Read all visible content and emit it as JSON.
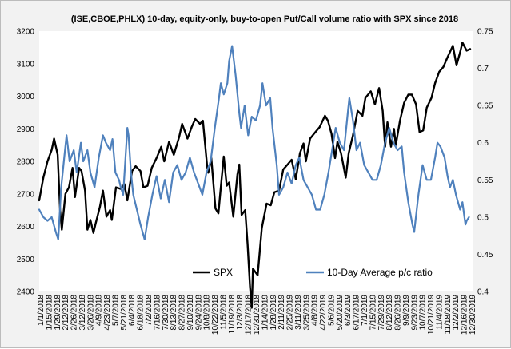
{
  "chart_data": {
    "type": "line",
    "title": "(ISE,CBOE,PHLX) 10-day, equity-only, buy-to-open Put/Call volume ratio with SPX since 2018",
    "xlabel": "",
    "ylabel": "",
    "y2label": "",
    "x_range": [
      "2018-01-01",
      "2019-12-30"
    ],
    "ylim": [
      2400,
      3200
    ],
    "y2lim": [
      0.4,
      0.75
    ],
    "y_ticks": [
      2400,
      2500,
      2600,
      2700,
      2800,
      2900,
      3000,
      3100,
      3200
    ],
    "y2_ticks": [
      "0.4",
      "0.45",
      "0.5",
      "0.55",
      "0.6",
      "0.65",
      "0.7",
      "0.75"
    ],
    "x_tick_labels": [
      "1/1/2018",
      "1/15/2018",
      "1/29/2018",
      "2/12/2018",
      "2/26/2018",
      "3/12/2018",
      "3/26/2018",
      "4/9/2018",
      "4/23/2018",
      "5/7/2018",
      "5/21/2018",
      "6/4/2018",
      "6/18/2018",
      "7/2/2018",
      "7/16/2018",
      "7/30/2018",
      "8/13/2018",
      "8/27/2018",
      "9/10/2018",
      "9/24/2018",
      "10/8/2018",
      "10/22/2018",
      "11/5/2018",
      "11/19/2018",
      "12/3/2018",
      "12/17/2018",
      "12/31/2018",
      "1/14/2019",
      "1/28/2019",
      "2/11/2019",
      "2/25/2019",
      "3/11/2019",
      "3/25/2019",
      "4/8/2019",
      "4/22/2019",
      "5/6/2019",
      "5/20/2019",
      "6/3/2019",
      "6/17/2019",
      "7/1/2019",
      "7/15/2019",
      "7/29/2019",
      "8/12/2019",
      "8/26/2019",
      "9/9/2019",
      "9/23/2019",
      "10/7/2019",
      "10/21/2019",
      "11/4/2019",
      "11/18/2019",
      "12/2/2019",
      "12/16/2019",
      "12/30/2019"
    ],
    "grid": false,
    "legend_position": "bottom",
    "series": [
      {
        "name": "SPX",
        "axis": "left",
        "color": "#000000",
        "points": [
          [
            "2018-01-01",
            2680
          ],
          [
            "2018-01-08",
            2750
          ],
          [
            "2018-01-15",
            2800
          ],
          [
            "2018-01-22",
            2835
          ],
          [
            "2018-01-26",
            2870
          ],
          [
            "2018-02-01",
            2820
          ],
          [
            "2018-02-05",
            2650
          ],
          [
            "2018-02-08",
            2590
          ],
          [
            "2018-02-14",
            2700
          ],
          [
            "2018-02-20",
            2720
          ],
          [
            "2018-02-26",
            2780
          ],
          [
            "2018-03-02",
            2690
          ],
          [
            "2018-03-09",
            2780
          ],
          [
            "2018-03-13",
            2770
          ],
          [
            "2018-03-19",
            2710
          ],
          [
            "2018-03-23",
            2590
          ],
          [
            "2018-03-28",
            2620
          ],
          [
            "2018-04-02",
            2580
          ],
          [
            "2018-04-06",
            2610
          ],
          [
            "2018-04-13",
            2660
          ],
          [
            "2018-04-18",
            2710
          ],
          [
            "2018-04-24",
            2630
          ],
          [
            "2018-04-30",
            2650
          ],
          [
            "2018-05-03",
            2620
          ],
          [
            "2018-05-10",
            2720
          ],
          [
            "2018-05-18",
            2715
          ],
          [
            "2018-05-24",
            2730
          ],
          [
            "2018-05-29",
            2680
          ],
          [
            "2018-06-06",
            2770
          ],
          [
            "2018-06-12",
            2785
          ],
          [
            "2018-06-20",
            2770
          ],
          [
            "2018-06-25",
            2720
          ],
          [
            "2018-07-02",
            2725
          ],
          [
            "2018-07-09",
            2780
          ],
          [
            "2018-07-17",
            2810
          ],
          [
            "2018-07-25",
            2845
          ],
          [
            "2018-07-30",
            2800
          ],
          [
            "2018-08-07",
            2860
          ],
          [
            "2018-08-15",
            2820
          ],
          [
            "2018-08-24",
            2875
          ],
          [
            "2018-08-29",
            2915
          ],
          [
            "2018-09-07",
            2870
          ],
          [
            "2018-09-14",
            2905
          ],
          [
            "2018-09-20",
            2930
          ],
          [
            "2018-09-28",
            2915
          ],
          [
            "2018-10-03",
            2925
          ],
          [
            "2018-10-10",
            2785
          ],
          [
            "2018-10-12",
            2765
          ],
          [
            "2018-10-17",
            2810
          ],
          [
            "2018-10-24",
            2655
          ],
          [
            "2018-10-29",
            2640
          ],
          [
            "2018-11-02",
            2720
          ],
          [
            "2018-11-07",
            2815
          ],
          [
            "2018-11-12",
            2725
          ],
          [
            "2018-11-16",
            2735
          ],
          [
            "2018-11-23",
            2630
          ],
          [
            "2018-11-30",
            2760
          ],
          [
            "2018-12-03",
            2790
          ],
          [
            "2018-12-07",
            2635
          ],
          [
            "2018-12-13",
            2650
          ],
          [
            "2018-12-17",
            2545
          ],
          [
            "2018-12-21",
            2415
          ],
          [
            "2018-12-24",
            2350
          ],
          [
            "2018-12-26",
            2470
          ],
          [
            "2019-01-03",
            2450
          ],
          [
            "2019-01-10",
            2595
          ],
          [
            "2019-01-18",
            2670
          ],
          [
            "2019-01-25",
            2665
          ],
          [
            "2019-01-31",
            2705
          ],
          [
            "2019-02-08",
            2710
          ],
          [
            "2019-02-15",
            2775
          ],
          [
            "2019-02-22",
            2790
          ],
          [
            "2019-03-01",
            2805
          ],
          [
            "2019-03-08",
            2745
          ],
          [
            "2019-03-15",
            2825
          ],
          [
            "2019-03-21",
            2855
          ],
          [
            "2019-03-25",
            2800
          ],
          [
            "2019-04-01",
            2870
          ],
          [
            "2019-04-10",
            2890
          ],
          [
            "2019-04-17",
            2905
          ],
          [
            "2019-04-26",
            2940
          ],
          [
            "2019-05-01",
            2925
          ],
          [
            "2019-05-07",
            2885
          ],
          [
            "2019-05-13",
            2810
          ],
          [
            "2019-05-17",
            2860
          ],
          [
            "2019-05-23",
            2825
          ],
          [
            "2019-05-31",
            2750
          ],
          [
            "2019-06-05",
            2825
          ],
          [
            "2019-06-12",
            2880
          ],
          [
            "2019-06-20",
            2955
          ],
          [
            "2019-06-28",
            2940
          ],
          [
            "2019-07-03",
            2995
          ],
          [
            "2019-07-12",
            3015
          ],
          [
            "2019-07-19",
            2975
          ],
          [
            "2019-07-26",
            3025
          ],
          [
            "2019-08-01",
            2955
          ],
          [
            "2019-08-05",
            2845
          ],
          [
            "2019-08-09",
            2920
          ],
          [
            "2019-08-15",
            2845
          ],
          [
            "2019-08-20",
            2900
          ],
          [
            "2019-08-23",
            2850
          ],
          [
            "2019-08-30",
            2925
          ],
          [
            "2019-09-06",
            2980
          ],
          [
            "2019-09-13",
            3005
          ],
          [
            "2019-09-19",
            3005
          ],
          [
            "2019-09-26",
            2975
          ],
          [
            "2019-10-02",
            2890
          ],
          [
            "2019-10-08",
            2895
          ],
          [
            "2019-10-14",
            2965
          ],
          [
            "2019-10-22",
            2995
          ],
          [
            "2019-10-28",
            3040
          ],
          [
            "2019-11-04",
            3075
          ],
          [
            "2019-11-11",
            3090
          ],
          [
            "2019-11-18",
            3120
          ],
          [
            "2019-11-27",
            3155
          ],
          [
            "2019-12-03",
            3095
          ],
          [
            "2019-12-09",
            3135
          ],
          [
            "2019-12-13",
            3165
          ],
          [
            "2019-12-20",
            3140
          ],
          [
            "2019-12-26",
            3145
          ]
        ]
      },
      {
        "name": "10-Day Average p/c ratio",
        "axis": "right",
        "color": "#4f81bd",
        "points": [
          [
            "2018-01-01",
            0.51
          ],
          [
            "2018-01-08",
            0.5
          ],
          [
            "2018-01-15",
            0.495
          ],
          [
            "2018-01-22",
            0.5
          ],
          [
            "2018-01-29",
            0.48
          ],
          [
            "2018-02-02",
            0.47
          ],
          [
            "2018-02-07",
            0.54
          ],
          [
            "2018-02-12",
            0.58
          ],
          [
            "2018-02-16",
            0.61
          ],
          [
            "2018-02-21",
            0.575
          ],
          [
            "2018-02-28",
            0.59
          ],
          [
            "2018-03-05",
            0.56
          ],
          [
            "2018-03-12",
            0.6
          ],
          [
            "2018-03-16",
            0.575
          ],
          [
            "2018-03-23",
            0.59
          ],
          [
            "2018-03-28",
            0.56
          ],
          [
            "2018-04-04",
            0.54
          ],
          [
            "2018-04-11",
            0.58
          ],
          [
            "2018-04-18",
            0.61
          ],
          [
            "2018-04-23",
            0.6
          ],
          [
            "2018-04-30",
            0.59
          ],
          [
            "2018-05-04",
            0.605
          ],
          [
            "2018-05-09",
            0.56
          ],
          [
            "2018-05-15",
            0.55
          ],
          [
            "2018-05-18",
            0.54
          ],
          [
            "2018-05-22",
            0.53
          ],
          [
            "2018-05-29",
            0.62
          ],
          [
            "2018-05-31",
            0.61
          ],
          [
            "2018-06-04",
            0.56
          ],
          [
            "2018-06-08",
            0.53
          ],
          [
            "2018-06-14",
            0.51
          ],
          [
            "2018-06-20",
            0.49
          ],
          [
            "2018-06-27",
            0.47
          ],
          [
            "2018-07-03",
            0.5
          ],
          [
            "2018-07-10",
            0.53
          ],
          [
            "2018-07-17",
            0.555
          ],
          [
            "2018-07-24",
            0.525
          ],
          [
            "2018-07-31",
            0.55
          ],
          [
            "2018-08-07",
            0.52
          ],
          [
            "2018-08-14",
            0.56
          ],
          [
            "2018-08-21",
            0.57
          ],
          [
            "2018-08-28",
            0.55
          ],
          [
            "2018-09-04",
            0.56
          ],
          [
            "2018-09-11",
            0.58
          ],
          [
            "2018-09-18",
            0.56
          ],
          [
            "2018-09-25",
            0.545
          ],
          [
            "2018-10-02",
            0.53
          ],
          [
            "2018-10-09",
            0.56
          ],
          [
            "2018-10-16",
            0.575
          ],
          [
            "2018-10-23",
            0.62
          ],
          [
            "2018-10-30",
            0.66
          ],
          [
            "2018-11-02",
            0.68
          ],
          [
            "2018-11-07",
            0.665
          ],
          [
            "2018-11-13",
            0.68
          ],
          [
            "2018-11-16",
            0.71
          ],
          [
            "2018-11-21",
            0.73
          ],
          [
            "2018-11-27",
            0.69
          ],
          [
            "2018-12-03",
            0.64
          ],
          [
            "2018-12-06",
            0.62
          ],
          [
            "2018-12-12",
            0.65
          ],
          [
            "2018-12-18",
            0.61
          ],
          [
            "2018-12-24",
            0.635
          ],
          [
            "2018-12-31",
            0.63
          ],
          [
            "2019-01-07",
            0.65
          ],
          [
            "2019-01-11",
            0.68
          ],
          [
            "2019-01-17",
            0.65
          ],
          [
            "2019-01-24",
            0.66
          ],
          [
            "2019-01-28",
            0.62
          ],
          [
            "2019-02-04",
            0.57
          ],
          [
            "2019-02-08",
            0.53
          ],
          [
            "2019-02-15",
            0.54
          ],
          [
            "2019-02-22",
            0.56
          ],
          [
            "2019-03-01",
            0.545
          ],
          [
            "2019-03-08",
            0.57
          ],
          [
            "2019-03-14",
            0.58
          ],
          [
            "2019-03-21",
            0.55
          ],
          [
            "2019-03-28",
            0.54
          ],
          [
            "2019-04-04",
            0.53
          ],
          [
            "2019-04-11",
            0.51
          ],
          [
            "2019-04-18",
            0.51
          ],
          [
            "2019-04-25",
            0.53
          ],
          [
            "2019-05-02",
            0.56
          ],
          [
            "2019-05-08",
            0.59
          ],
          [
            "2019-05-14",
            0.62
          ],
          [
            "2019-05-21",
            0.6
          ],
          [
            "2019-05-28",
            0.59
          ],
          [
            "2019-06-04",
            0.645
          ],
          [
            "2019-06-06",
            0.66
          ],
          [
            "2019-06-12",
            0.63
          ],
          [
            "2019-06-18",
            0.59
          ],
          [
            "2019-06-24",
            0.6
          ],
          [
            "2019-07-01",
            0.57
          ],
          [
            "2019-07-08",
            0.56
          ],
          [
            "2019-07-15",
            0.55
          ],
          [
            "2019-07-22",
            0.55
          ],
          [
            "2019-07-29",
            0.57
          ],
          [
            "2019-08-05",
            0.6
          ],
          [
            "2019-08-12",
            0.62
          ],
          [
            "2019-08-19",
            0.6
          ],
          [
            "2019-08-26",
            0.59
          ],
          [
            "2019-09-02",
            0.595
          ],
          [
            "2019-09-06",
            0.56
          ],
          [
            "2019-09-13",
            0.52
          ],
          [
            "2019-09-20",
            0.49
          ],
          [
            "2019-09-23",
            0.48
          ],
          [
            "2019-09-30",
            0.53
          ],
          [
            "2019-10-07",
            0.57
          ],
          [
            "2019-10-14",
            0.55
          ],
          [
            "2019-10-21",
            0.55
          ],
          [
            "2019-10-28",
            0.58
          ],
          [
            "2019-11-01",
            0.6
          ],
          [
            "2019-11-06",
            0.595
          ],
          [
            "2019-11-13",
            0.58
          ],
          [
            "2019-11-18",
            0.555
          ],
          [
            "2019-11-22",
            0.54
          ],
          [
            "2019-11-27",
            0.55
          ],
          [
            "2019-12-02",
            0.53
          ],
          [
            "2019-12-09",
            0.51
          ],
          [
            "2019-12-13",
            0.52
          ],
          [
            "2019-12-18",
            0.49
          ],
          [
            "2019-12-20",
            0.495
          ],
          [
            "2019-12-24",
            0.5
          ]
        ]
      }
    ]
  }
}
